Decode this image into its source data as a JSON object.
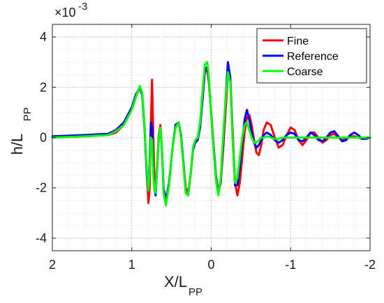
{
  "chart_data": {
    "type": "line",
    "xlabel": {
      "main": "X/L",
      "sub": "PP"
    },
    "ylabel": {
      "main": "h/L",
      "sub": "PP"
    },
    "exponent_label": {
      "base": "×10",
      "exp": "-3"
    },
    "xlim": [
      2,
      -2
    ],
    "ylim": [
      -4.5,
      4.5
    ],
    "x_reversed": true,
    "xticks": [
      2,
      1,
      0,
      -1,
      -2
    ],
    "xtick_labels": [
      "2",
      "1",
      "0",
      "-1",
      "-2"
    ],
    "yticks": [
      -4,
      -2,
      0,
      2,
      4
    ],
    "ytick_labels": [
      "-4",
      "-2",
      "0",
      "2",
      "4"
    ],
    "grid": true,
    "minor_grid": true,
    "legend_position": "top-right",
    "series": [
      {
        "name": "Fine",
        "color": "#ff0000",
        "x": [
          2.0,
          1.6,
          1.3,
          1.2,
          1.1,
          1.0,
          0.95,
          0.9,
          0.87,
          0.84,
          0.81,
          0.79,
          0.775,
          0.76,
          0.745,
          0.73,
          0.715,
          0.7,
          0.68,
          0.66,
          0.64,
          0.62,
          0.6,
          0.57,
          0.53,
          0.49,
          0.45,
          0.41,
          0.38,
          0.35,
          0.32,
          0.29,
          0.26,
          0.23,
          0.2,
          0.17,
          0.14,
          0.11,
          0.08,
          0.05,
          0.03,
          0.0,
          -0.03,
          -0.06,
          -0.09,
          -0.12,
          -0.15,
          -0.18,
          -0.21,
          -0.24,
          -0.27,
          -0.3,
          -0.33,
          -0.36,
          -0.39,
          -0.42,
          -0.45,
          -0.48,
          -0.51,
          -0.54,
          -0.57,
          -0.6,
          -0.63,
          -0.66,
          -0.7,
          -0.75,
          -0.8,
          -0.85,
          -0.9,
          -0.95,
          -1.0,
          -1.05,
          -1.1,
          -1.15,
          -1.2,
          -1.25,
          -1.3,
          -1.35,
          -1.4,
          -1.45,
          -1.5,
          -1.55,
          -1.6,
          -1.65,
          -1.7,
          -1.75,
          -1.8,
          -1.85,
          -1.9,
          -1.95,
          -2.0
        ],
        "y": [
          0.0,
          0.05,
          0.1,
          0.2,
          0.5,
          1.1,
          1.6,
          2.0,
          1.8,
          0.5,
          -1.5,
          -2.6,
          -2.0,
          0.5,
          2.3,
          0.2,
          -1.8,
          -2.0,
          -1.0,
          0.1,
          0.5,
          -0.5,
          -2.0,
          -2.6,
          -1.8,
          -0.5,
          0.4,
          0.6,
          0.1,
          -1.0,
          -2.0,
          -2.2,
          -1.5,
          -0.5,
          -0.1,
          0.0,
          0.5,
          1.5,
          2.6,
          2.7,
          2.2,
          1.0,
          -0.3,
          -1.5,
          -2.2,
          -1.8,
          -0.5,
          1.0,
          2.5,
          2.3,
          0.3,
          -1.8,
          -2.3,
          -1.8,
          -0.8,
          0.2,
          0.8,
          0.9,
          0.5,
          -0.1,
          -0.6,
          -0.7,
          -0.3,
          0.3,
          0.6,
          0.5,
          0.0,
          -0.4,
          -0.3,
          0.1,
          0.4,
          0.3,
          -0.1,
          -0.3,
          -0.1,
          0.2,
          0.2,
          0.0,
          -0.2,
          -0.1,
          0.1,
          0.15,
          0.0,
          -0.1,
          -0.05,
          0.05,
          0.05,
          0.0,
          -0.05,
          0.0,
          0.0
        ]
      },
      {
        "name": "Reference",
        "color": "#0000ff",
        "x": [
          2.0,
          1.6,
          1.3,
          1.2,
          1.1,
          1.0,
          0.95,
          0.9,
          0.87,
          0.84,
          0.81,
          0.79,
          0.775,
          0.76,
          0.745,
          0.73,
          0.715,
          0.7,
          0.68,
          0.66,
          0.64,
          0.62,
          0.6,
          0.57,
          0.53,
          0.49,
          0.45,
          0.41,
          0.38,
          0.35,
          0.32,
          0.29,
          0.26,
          0.23,
          0.2,
          0.17,
          0.14,
          0.11,
          0.08,
          0.05,
          0.03,
          0.0,
          -0.03,
          -0.06,
          -0.09,
          -0.12,
          -0.15,
          -0.18,
          -0.21,
          -0.24,
          -0.27,
          -0.3,
          -0.33,
          -0.36,
          -0.39,
          -0.42,
          -0.45,
          -0.48,
          -0.51,
          -0.54,
          -0.57,
          -0.6,
          -0.63,
          -0.66,
          -0.7,
          -0.75,
          -0.8,
          -0.85,
          -0.9,
          -0.95,
          -1.0,
          -1.05,
          -1.1,
          -1.15,
          -1.2,
          -1.25,
          -1.3,
          -1.35,
          -1.4,
          -1.45,
          -1.5,
          -1.55,
          -1.6,
          -1.65,
          -1.7,
          -1.75,
          -1.8,
          -1.85,
          -1.9,
          -1.95,
          -2.0
        ],
        "y": [
          0.05,
          0.1,
          0.15,
          0.3,
          0.6,
          1.2,
          1.7,
          2.0,
          1.7,
          0.4,
          -1.5,
          -2.1,
          -1.0,
          0.6,
          0.4,
          -1.2,
          -2.0,
          -2.3,
          -1.2,
          0.0,
          0.4,
          -0.5,
          -2.0,
          -2.5,
          -1.8,
          -0.5,
          0.5,
          0.6,
          0.1,
          -1.0,
          -2.2,
          -2.3,
          -1.5,
          -0.5,
          -0.2,
          -0.1,
          0.4,
          1.5,
          2.7,
          2.8,
          2.3,
          0.9,
          -0.4,
          -1.6,
          -2.2,
          -1.7,
          -0.2,
          1.5,
          3.0,
          2.4,
          0.0,
          -1.9,
          -1.9,
          -1.2,
          -0.2,
          0.7,
          1.1,
          0.7,
          0.2,
          -0.2,
          -0.4,
          -0.3,
          -0.1,
          0.1,
          0.2,
          0.1,
          -0.1,
          -0.2,
          -0.1,
          0.1,
          0.2,
          0.15,
          -0.1,
          -0.15,
          0.0,
          0.2,
          0.1,
          -0.1,
          -0.15,
          0.0,
          0.2,
          0.25,
          0.05,
          -0.15,
          -0.1,
          0.1,
          0.2,
          0.1,
          -0.05,
          -0.05,
          0.0
        ]
      },
      {
        "name": "Coarse",
        "color": "#00ff00",
        "x": [
          2.0,
          1.6,
          1.3,
          1.2,
          1.1,
          1.0,
          0.95,
          0.9,
          0.87,
          0.84,
          0.81,
          0.79,
          0.775,
          0.76,
          0.745,
          0.73,
          0.715,
          0.7,
          0.68,
          0.66,
          0.64,
          0.62,
          0.6,
          0.57,
          0.53,
          0.49,
          0.45,
          0.41,
          0.38,
          0.35,
          0.32,
          0.29,
          0.26,
          0.23,
          0.2,
          0.17,
          0.14,
          0.11,
          0.08,
          0.05,
          0.03,
          0.0,
          -0.03,
          -0.06,
          -0.09,
          -0.12,
          -0.15,
          -0.18,
          -0.21,
          -0.24,
          -0.27,
          -0.3,
          -0.33,
          -0.36,
          -0.39,
          -0.42,
          -0.45,
          -0.48,
          -0.51,
          -0.54,
          -0.57,
          -0.6,
          -0.63,
          -0.66,
          -0.7,
          -0.75,
          -0.8,
          -0.85,
          -0.9,
          -0.95,
          -1.0,
          -1.05,
          -1.1,
          -1.15,
          -1.2,
          -1.25,
          -1.3,
          -1.35,
          -1.4,
          -1.45,
          -1.5,
          -1.55,
          -1.6,
          -1.65,
          -1.7,
          -1.75,
          -1.8,
          -1.85,
          -1.9,
          -1.95,
          -2.0
        ],
        "y": [
          0.0,
          0.05,
          0.1,
          0.25,
          0.5,
          1.1,
          1.6,
          2.05,
          1.8,
          0.5,
          -1.3,
          -2.1,
          -1.3,
          0.0,
          -0.1,
          -1.4,
          -2.1,
          -2.2,
          -1.1,
          0.0,
          0.4,
          -0.5,
          -2.2,
          -2.7,
          -1.9,
          -0.5,
          0.4,
          0.6,
          0.0,
          -1.1,
          -2.2,
          -2.3,
          -1.5,
          -0.4,
          -0.1,
          0.0,
          0.6,
          1.8,
          2.9,
          3.0,
          2.4,
          0.9,
          -0.5,
          -1.7,
          -2.3,
          -1.6,
          0.0,
          1.5,
          2.6,
          2.2,
          0.0,
          -1.8,
          -1.6,
          -0.8,
          0.0,
          0.5,
          0.6,
          0.3,
          0.0,
          -0.2,
          -0.2,
          -0.1,
          0.0,
          0.0,
          0.05,
          0.0,
          -0.05,
          -0.05,
          0.0,
          0.0,
          0.0,
          0.0,
          0.0,
          0.0,
          0.0,
          0.0,
          0.0,
          0.0,
          0.0,
          0.0,
          0.0,
          0.0,
          0.0,
          0.0,
          0.0,
          0.0,
          0.0,
          0.0,
          0.0,
          0.0,
          0.0
        ]
      }
    ]
  }
}
